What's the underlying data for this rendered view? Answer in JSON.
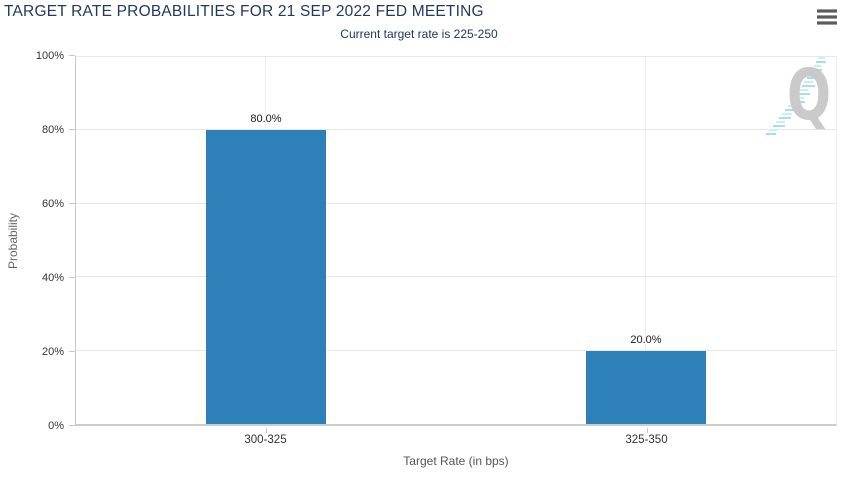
{
  "chart_data": {
    "type": "bar",
    "title": "TARGET RATE PROBABILITIES FOR 21 SEP 2022 FED MEETING",
    "subtitle": "Current target rate is 225-250",
    "categories": [
      "300-325",
      "325-350"
    ],
    "values": [
      80.0,
      20.0
    ],
    "value_labels": [
      "80.0%",
      "20.0%"
    ],
    "xlabel": "Target Rate (in bps)",
    "ylabel": "Probability",
    "ylim": [
      0,
      100
    ],
    "y_tick_labels": [
      "0%",
      "20%",
      "40%",
      "60%",
      "80%",
      "100%"
    ],
    "grid": true,
    "legend": "none",
    "bar_color": "#2e80b9"
  },
  "watermark": {
    "letter": "Q"
  },
  "colors": {
    "title": "#203a60",
    "subtitle": "#17375e",
    "bar": "#2e80b9",
    "gridline": "#e8e8e8",
    "axis_line": "#c9c9c9",
    "tick_label": "#333333",
    "axis_title": "#666666",
    "watermark_letter": "#cacaca",
    "watermark_dashes": "#a5dcf7"
  }
}
